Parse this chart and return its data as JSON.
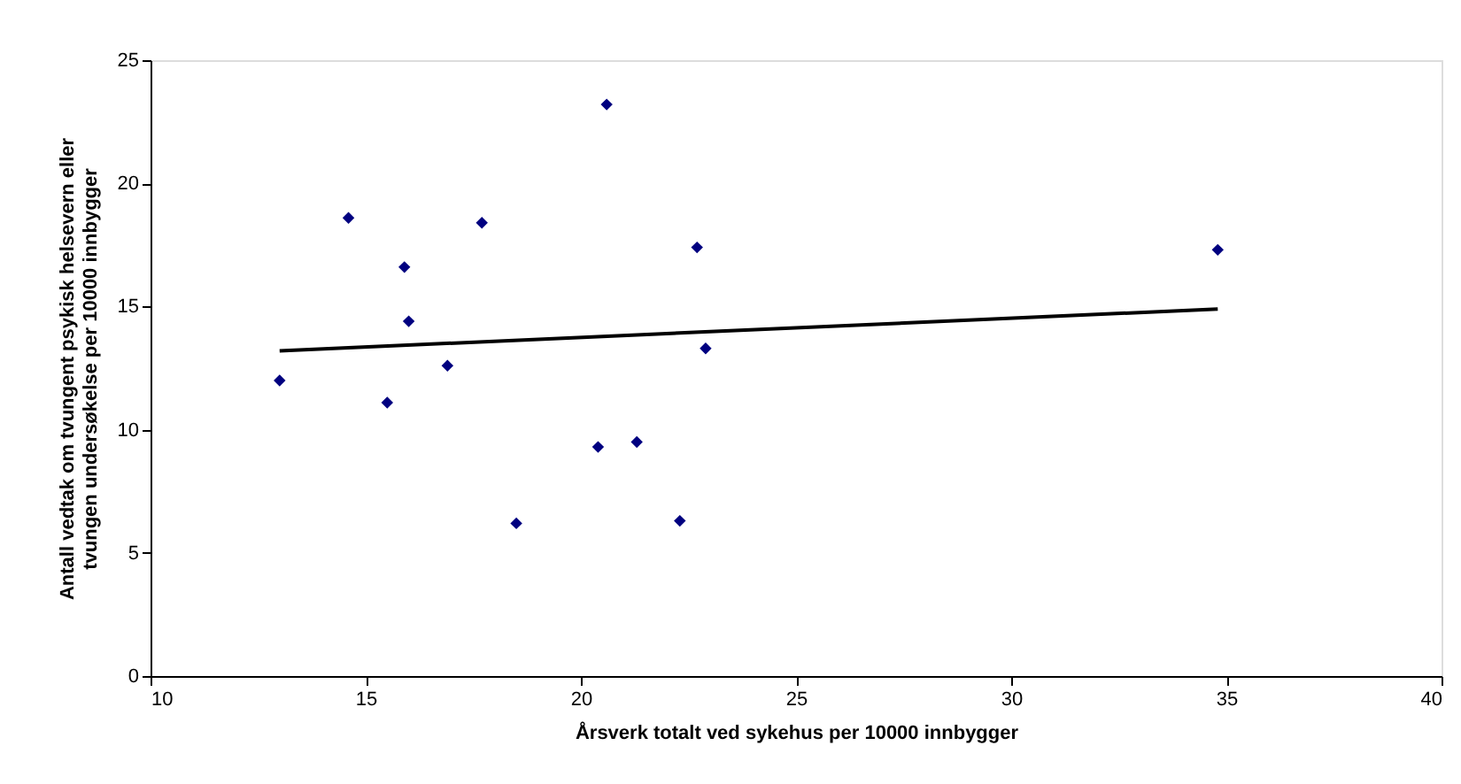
{
  "chart_data": {
    "type": "scatter",
    "xlabel": "Årsverk totalt ved sykehus per 10000 innbygger",
    "ylabel": "Antall vedtak om tvungent psykisk helsevern eller\ntvungen undersøkelse per 10000 innbygger",
    "xlim": [
      10,
      40
    ],
    "xticks": [
      10,
      15,
      20,
      25,
      30,
      35,
      40
    ],
    "ylim": [
      0,
      25
    ],
    "yticks": [
      0,
      5,
      10,
      15,
      20,
      25
    ],
    "grid": false,
    "series": [
      {
        "color": "#000080",
        "marker": "diamond",
        "x": [
          13.0,
          14.6,
          15.9,
          16.0,
          15.5,
          16.9,
          17.7,
          18.5,
          20.4,
          20.6,
          21.3,
          22.3,
          22.7,
          22.9,
          34.8
        ],
        "values": [
          12.0,
          18.6,
          16.6,
          14.4,
          11.1,
          12.6,
          18.4,
          6.2,
          9.3,
          23.2,
          9.5,
          6.3,
          17.4,
          13.3,
          17.3
        ]
      },
      {
        "type": "line",
        "marker": "none",
        "color": "#000000",
        "x": [
          13.0,
          34.8
        ],
        "values": [
          13.2,
          14.9
        ]
      }
    ]
  }
}
